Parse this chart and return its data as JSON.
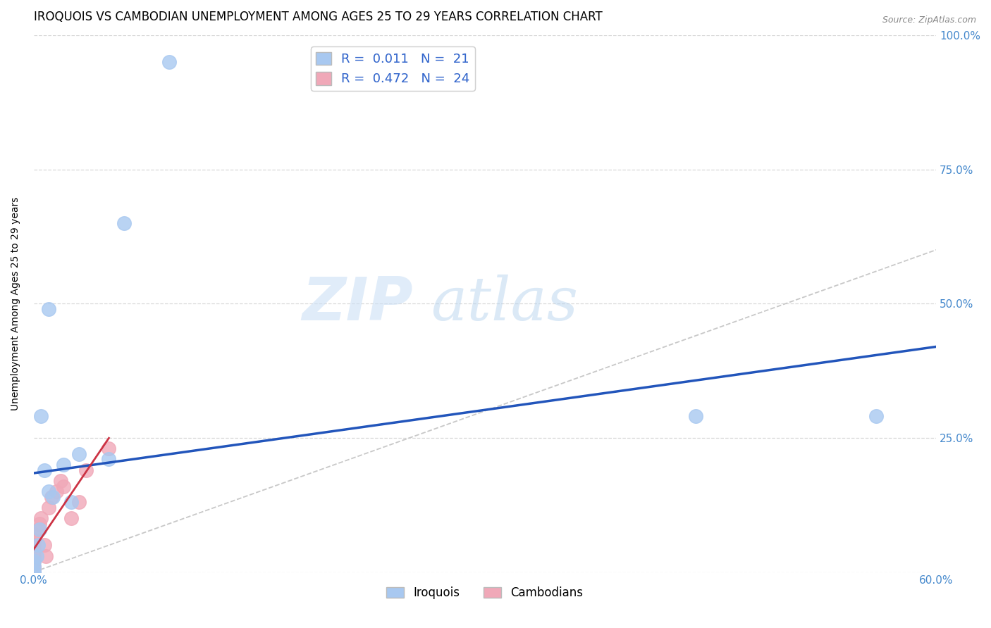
{
  "title": "IROQUOIS VS CAMBODIAN UNEMPLOYMENT AMONG AGES 25 TO 29 YEARS CORRELATION CHART",
  "source": "Source: ZipAtlas.com",
  "ylabel": "Unemployment Among Ages 25 to 29 years",
  "xlim": [
    0.0,
    0.6
  ],
  "ylim": [
    0.0,
    1.0
  ],
  "xticks": [
    0.0,
    0.1,
    0.2,
    0.3,
    0.4,
    0.5,
    0.6
  ],
  "xticklabels": [
    "0.0%",
    "",
    "",
    "",
    "",
    "",
    "60.0%"
  ],
  "yticks": [
    0.0,
    0.25,
    0.5,
    0.75,
    1.0
  ],
  "yticklabels": [
    "",
    "25.0%",
    "50.0%",
    "75.0%",
    "100.0%"
  ],
  "iroquois_R": "0.011",
  "iroquois_N": "21",
  "cambodian_R": "0.472",
  "cambodian_N": "24",
  "iroquois_color": "#a8c8f0",
  "cambodian_color": "#f0a8b8",
  "regression_iroquois_color": "#2255bb",
  "regression_cambodian_color": "#cc3344",
  "diagonal_color": "#c8c8c8",
  "grid_color": "#d8d8d8",
  "watermark_zip": "ZIP",
  "watermark_atlas": "atlas",
  "iroquois_x": [
    0.0,
    0.0,
    0.0,
    0.0,
    0.0,
    0.002,
    0.003,
    0.004,
    0.005,
    0.007,
    0.01,
    0.01,
    0.013,
    0.02,
    0.025,
    0.03,
    0.05,
    0.06,
    0.09,
    0.44,
    0.56
  ],
  "iroquois_y": [
    0.0,
    0.0,
    0.0,
    0.01,
    0.02,
    0.03,
    0.05,
    0.08,
    0.29,
    0.19,
    0.15,
    0.49,
    0.14,
    0.2,
    0.13,
    0.22,
    0.21,
    0.65,
    0.95,
    0.29,
    0.29
  ],
  "cambodian_x": [
    0.0,
    0.0,
    0.0,
    0.0,
    0.0,
    0.0,
    0.0,
    0.0,
    0.0,
    0.0,
    0.003,
    0.004,
    0.005,
    0.007,
    0.008,
    0.01,
    0.012,
    0.015,
    0.018,
    0.02,
    0.025,
    0.03,
    0.035,
    0.05
  ],
  "cambodian_y": [
    0.0,
    0.0,
    0.0,
    0.01,
    0.02,
    0.03,
    0.04,
    0.05,
    0.06,
    0.07,
    0.08,
    0.09,
    0.1,
    0.05,
    0.03,
    0.12,
    0.14,
    0.15,
    0.17,
    0.16,
    0.1,
    0.13,
    0.19,
    0.23
  ],
  "title_fontsize": 12,
  "axis_label_fontsize": 10,
  "tick_fontsize": 11,
  "legend_fontsize": 13,
  "watermark_fontsize_zip": 62,
  "watermark_fontsize_atlas": 62
}
